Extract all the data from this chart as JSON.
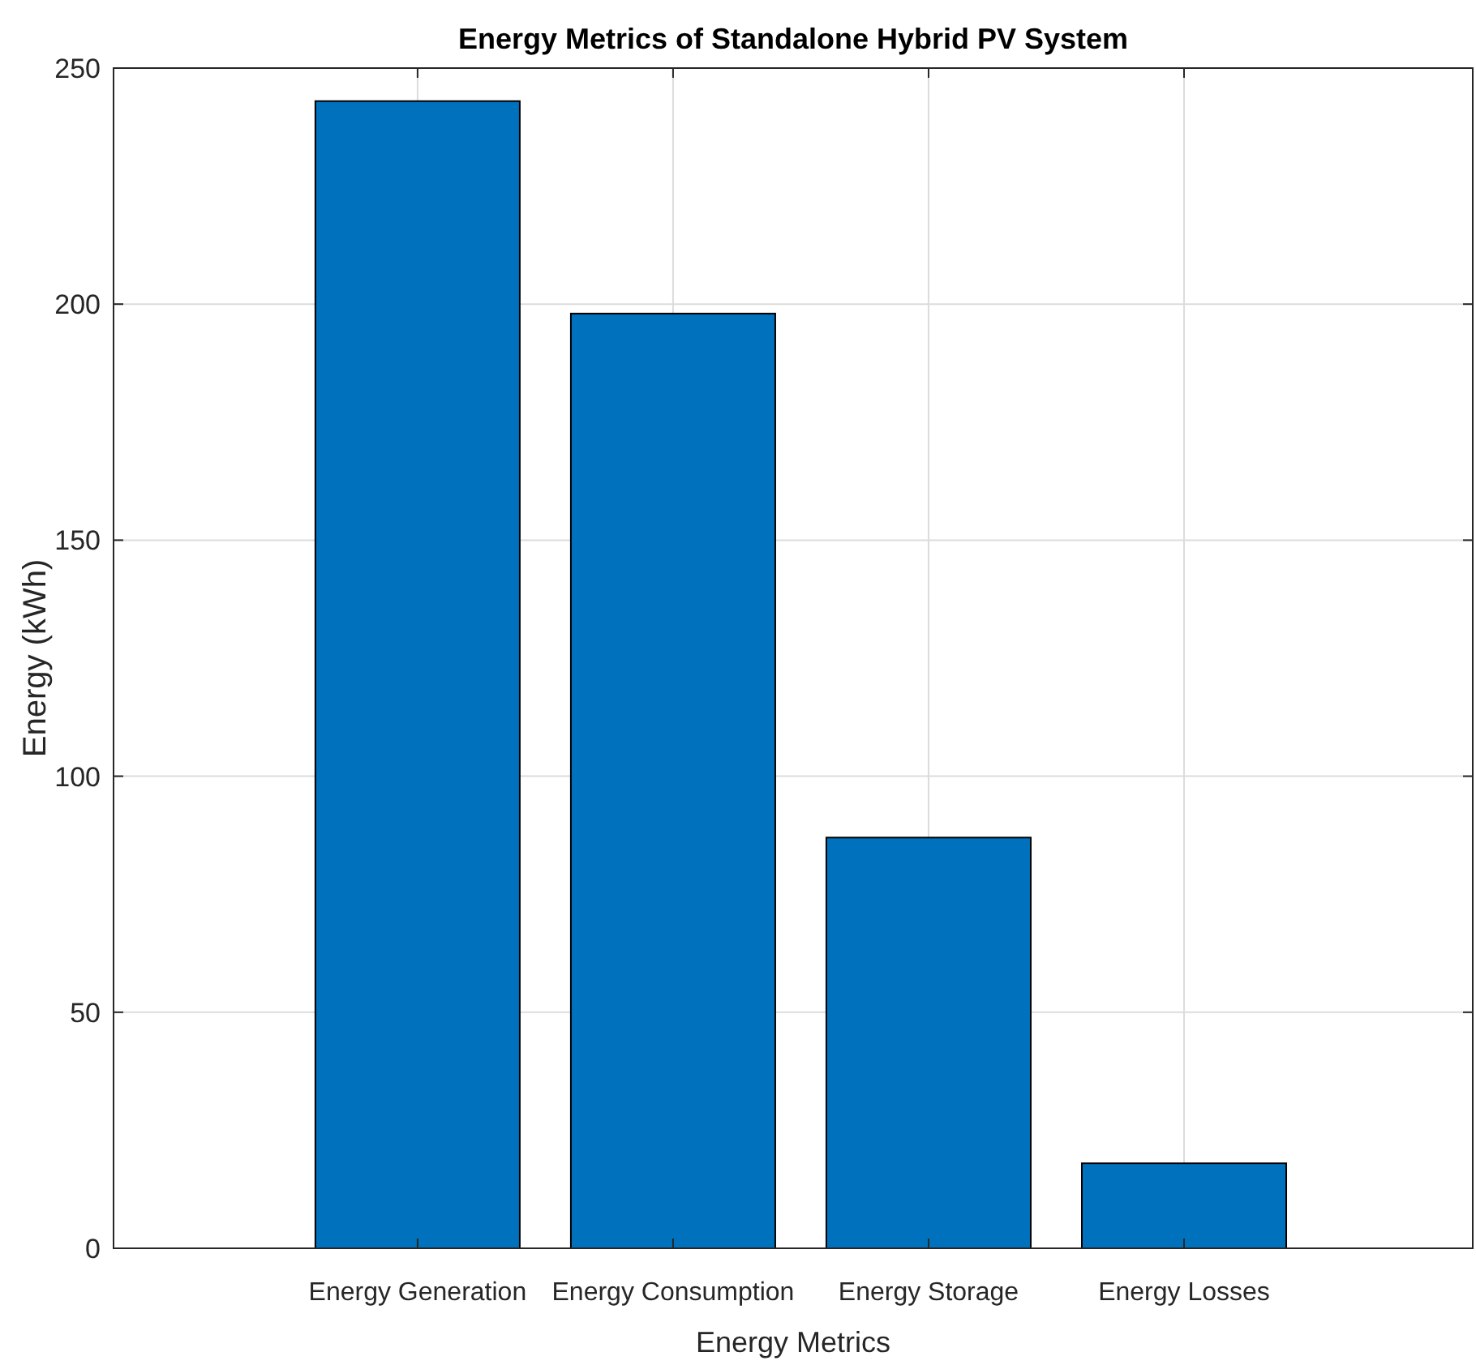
{
  "chart_data": {
    "type": "bar",
    "title": "Energy Metrics of Standalone Hybrid PV System",
    "xlabel": "Energy Metrics",
    "ylabel": "Energy (kWh)",
    "categories": [
      "Energy Generation",
      "Energy Consumption",
      "Energy Storage",
      "Energy Losses"
    ],
    "values": [
      243,
      198,
      87,
      18
    ],
    "color": "#0072bd",
    "ylim": [
      0,
      250
    ],
    "yticks": [
      0,
      50,
      100,
      150,
      200,
      250
    ],
    "grid": true
  }
}
